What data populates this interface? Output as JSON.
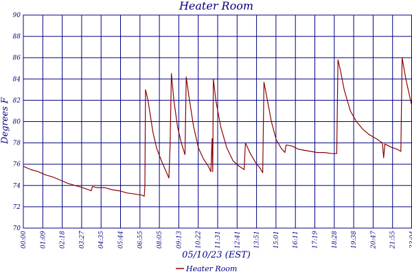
{
  "chart_data": {
    "type": "line",
    "title": "Heater Room",
    "xlabel": "05/10/23 (EST)",
    "ylabel": "Degrees F",
    "ylim": [
      70,
      90
    ],
    "yticks": [
      70,
      72,
      74,
      76,
      78,
      80,
      82,
      84,
      86,
      88,
      90
    ],
    "xtick_labels": [
      "00:00",
      "01:09",
      "02:18",
      "03:27",
      "04:35",
      "05:44",
      "06:55",
      "08:05",
      "09:13",
      "10:22",
      "11:31",
      "12:41",
      "13:51",
      "15:01",
      "16:11",
      "17:19",
      "18:28",
      "19:38",
      "20:47",
      "21:55",
      "23:04"
    ],
    "grid": true,
    "legend_position": "bottom-center",
    "colors": {
      "series": "#8b0000",
      "grid": "#000080",
      "text": "#000080"
    },
    "series": [
      {
        "name": "Heater Room",
        "points": [
          [
            0,
            75.8
          ],
          [
            12,
            75.5
          ],
          [
            24,
            75.3
          ],
          [
            36,
            75.0
          ],
          [
            48,
            74.8
          ],
          [
            60,
            74.5
          ],
          [
            72,
            74.2
          ],
          [
            84,
            74.0
          ],
          [
            96,
            73.8
          ],
          [
            106,
            73.6
          ],
          [
            110,
            73.5
          ],
          [
            112,
            73.9
          ],
          [
            120,
            73.8
          ],
          [
            132,
            73.8
          ],
          [
            144,
            73.6
          ],
          [
            156,
            73.5
          ],
          [
            168,
            73.3
          ],
          [
            180,
            73.2
          ],
          [
            192,
            73.1
          ],
          [
            196,
            73.0
          ],
          [
            197,
            74.0
          ],
          [
            198,
            83.0
          ],
          [
            202,
            82.0
          ],
          [
            210,
            79.0
          ],
          [
            216,
            77.5
          ],
          [
            224,
            76.3
          ],
          [
            230,
            75.5
          ],
          [
            236,
            74.7
          ],
          [
            238,
            78.0
          ],
          [
            240,
            84.5
          ],
          [
            244,
            82.0
          ],
          [
            250,
            79.5
          ],
          [
            256,
            78.0
          ],
          [
            262,
            76.9
          ],
          [
            264,
            84.2
          ],
          [
            268,
            82.5
          ],
          [
            276,
            79.5
          ],
          [
            284,
            77.5
          ],
          [
            292,
            76.5
          ],
          [
            300,
            75.8
          ],
          [
            304,
            75.3
          ],
          [
            306,
            78.4
          ],
          [
            307,
            75.3
          ],
          [
            308,
            84.0
          ],
          [
            312,
            82.0
          ],
          [
            320,
            79.5
          ],
          [
            330,
            77.5
          ],
          [
            340,
            76.3
          ],
          [
            350,
            75.8
          ],
          [
            358,
            75.5
          ],
          [
            360,
            78.0
          ],
          [
            368,
            77.0
          ],
          [
            376,
            76.2
          ],
          [
            384,
            75.6
          ],
          [
            388,
            75.2
          ],
          [
            390,
            83.7
          ],
          [
            394,
            82.5
          ],
          [
            402,
            80.0
          ],
          [
            410,
            78.3
          ],
          [
            418,
            77.5
          ],
          [
            424,
            77.1
          ],
          [
            426,
            77.8
          ],
          [
            436,
            77.7
          ],
          [
            446,
            77.4
          ],
          [
            456,
            77.3
          ],
          [
            466,
            77.2
          ],
          [
            476,
            77.1
          ],
          [
            488,
            77.1
          ],
          [
            500,
            77.0
          ],
          [
            508,
            77.0
          ],
          [
            510,
            85.8
          ],
          [
            514,
            84.8
          ],
          [
            520,
            83.0
          ],
          [
            530,
            81.0
          ],
          [
            540,
            80.0
          ],
          [
            550,
            79.3
          ],
          [
            560,
            78.8
          ],
          [
            572,
            78.4
          ],
          [
            582,
            78.0
          ],
          [
            584,
            76.6
          ],
          [
            586,
            77.9
          ],
          [
            596,
            77.6
          ],
          [
            606,
            77.4
          ],
          [
            612,
            77.2
          ],
          [
            614,
            86.0
          ],
          [
            620,
            84.0
          ],
          [
            630,
            81.4
          ]
        ]
      }
    ]
  }
}
